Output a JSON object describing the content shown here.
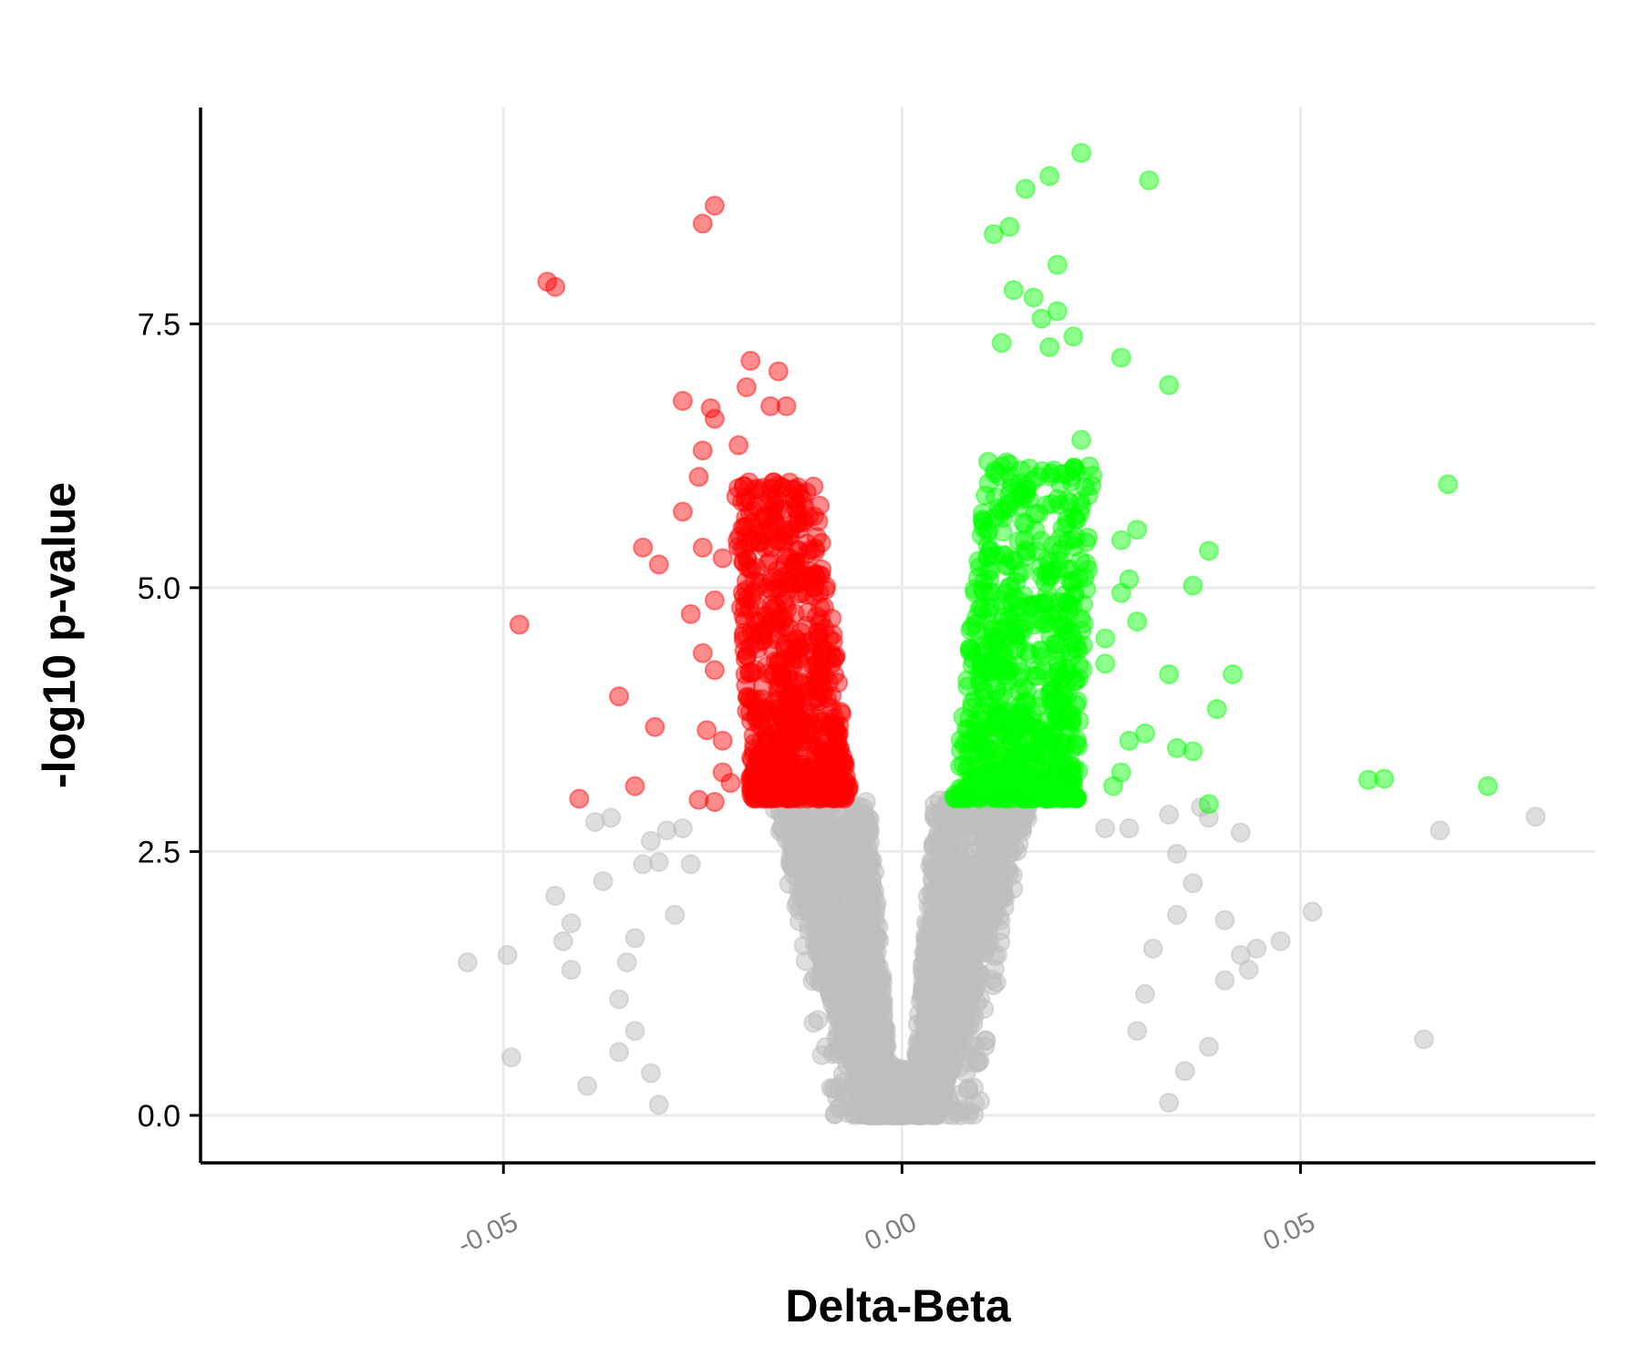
{
  "chart_data": {
    "type": "scatter",
    "title": "",
    "xlabel": "Delta-Beta",
    "ylabel": "-log10 p-value",
    "xlim": [
      -0.088,
      0.087
    ],
    "ylim": [
      -0.45,
      9.55
    ],
    "x_ticks": [
      -0.05,
      0.0,
      0.05
    ],
    "x_tick_labels": [
      "-0.05",
      "0.00",
      "0.05"
    ],
    "y_ticks": [
      0.0,
      2.5,
      5.0,
      7.5
    ],
    "y_tick_labels": [
      "0.0",
      "2.5",
      "5.0",
      "7.5"
    ],
    "grid": true,
    "legend": "none",
    "significance_threshold": 3.0,
    "colors": {
      "down": "#ff0000",
      "up": "#00ff00",
      "ns": "#bebebe",
      "grid": "#ebebeb",
      "axis": "#000000"
    },
    "series": [
      {
        "key": "down",
        "color": "#ff0000",
        "points": [
          [
            -0.0235,
            8.62
          ],
          [
            -0.025,
            8.45
          ],
          [
            -0.0445,
            7.9
          ],
          [
            -0.0435,
            7.85
          ],
          [
            -0.019,
            7.15
          ],
          [
            -0.0155,
            7.05
          ],
          [
            -0.0275,
            6.77
          ],
          [
            -0.024,
            6.7
          ],
          [
            -0.0235,
            6.6
          ],
          [
            -0.0195,
            6.9
          ],
          [
            -0.0165,
            6.72
          ],
          [
            -0.0145,
            6.72
          ],
          [
            -0.025,
            6.3
          ],
          [
            -0.0205,
            6.35
          ],
          [
            -0.0255,
            6.05
          ],
          [
            -0.0275,
            5.72
          ],
          [
            -0.0325,
            5.38
          ],
          [
            -0.0305,
            5.22
          ],
          [
            -0.025,
            5.38
          ],
          [
            -0.0225,
            5.28
          ],
          [
            -0.048,
            4.65
          ],
          [
            -0.0265,
            4.75
          ],
          [
            -0.0235,
            4.88
          ],
          [
            -0.025,
            4.38
          ],
          [
            -0.0235,
            4.22
          ],
          [
            -0.0355,
            3.97
          ],
          [
            -0.031,
            3.68
          ],
          [
            -0.0245,
            3.65
          ],
          [
            -0.0225,
            3.55
          ],
          [
            -0.0335,
            3.12
          ],
          [
            -0.0405,
            3.0
          ],
          [
            -0.0255,
            2.99
          ],
          [
            -0.0235,
            2.97
          ],
          [
            -0.0225,
            3.25
          ],
          [
            -0.0215,
            3.15
          ]
        ]
      },
      {
        "key": "up",
        "color": "#00ff00",
        "points": [
          [
            0.0225,
            9.12
          ],
          [
            0.031,
            8.86
          ],
          [
            0.0185,
            8.9
          ],
          [
            0.0155,
            8.78
          ],
          [
            0.0135,
            8.42
          ],
          [
            0.0115,
            8.35
          ],
          [
            0.0195,
            8.06
          ],
          [
            0.014,
            7.82
          ],
          [
            0.0165,
            7.75
          ],
          [
            0.0175,
            7.55
          ],
          [
            0.0195,
            7.62
          ],
          [
            0.0215,
            7.38
          ],
          [
            0.0185,
            7.28
          ],
          [
            0.0275,
            7.18
          ],
          [
            0.0125,
            7.32
          ],
          [
            0.0335,
            6.92
          ],
          [
            0.0225,
            6.4
          ],
          [
            0.0235,
            6.15
          ],
          [
            0.0685,
            5.98
          ],
          [
            0.0385,
            5.35
          ],
          [
            0.0295,
            5.55
          ],
          [
            0.0275,
            5.45
          ],
          [
            0.0365,
            5.02
          ],
          [
            0.0285,
            5.08
          ],
          [
            0.0275,
            4.95
          ],
          [
            0.0255,
            4.52
          ],
          [
            0.0295,
            4.68
          ],
          [
            0.0335,
            4.18
          ],
          [
            0.0415,
            4.18
          ],
          [
            0.0255,
            4.28
          ],
          [
            0.0395,
            3.85
          ],
          [
            0.0305,
            3.62
          ],
          [
            0.0345,
            3.48
          ],
          [
            0.0365,
            3.45
          ],
          [
            0.0285,
            3.55
          ],
          [
            0.0585,
            3.18
          ],
          [
            0.0605,
            3.19
          ],
          [
            0.0735,
            3.12
          ],
          [
            0.0385,
            2.95
          ],
          [
            0.0275,
            3.25
          ],
          [
            0.0265,
            3.12
          ]
        ]
      },
      {
        "key": "ns",
        "color": "#bebebe",
        "points": [
          [
            -0.0545,
            1.45
          ],
          [
            -0.0495,
            1.52
          ],
          [
            -0.049,
            0.55
          ],
          [
            -0.0435,
            2.08
          ],
          [
            -0.0415,
            1.82
          ],
          [
            -0.0425,
            1.65
          ],
          [
            -0.0415,
            1.38
          ],
          [
            -0.0395,
            0.28
          ],
          [
            -0.0385,
            2.78
          ],
          [
            -0.0365,
            2.82
          ],
          [
            -0.0375,
            2.22
          ],
          [
            -0.0355,
            0.6
          ],
          [
            -0.0335,
            1.68
          ],
          [
            -0.0325,
            2.38
          ],
          [
            -0.0315,
            2.6
          ],
          [
            -0.0305,
            2.4
          ],
          [
            -0.0295,
            2.7
          ],
          [
            -0.0285,
            1.9
          ],
          [
            -0.0305,
            0.1
          ],
          [
            -0.0275,
            2.72
          ],
          [
            -0.0265,
            2.38
          ],
          [
            -0.0355,
            1.1
          ],
          [
            -0.0335,
            0.8
          ],
          [
            -0.0315,
            0.4
          ],
          [
            -0.0345,
            1.45
          ],
          [
            0.0255,
            2.72
          ],
          [
            0.0285,
            2.72
          ],
          [
            0.0335,
            2.85
          ],
          [
            0.0345,
            2.48
          ],
          [
            0.0365,
            2.2
          ],
          [
            0.0375,
            2.92
          ],
          [
            0.0385,
            2.82
          ],
          [
            0.0425,
            2.68
          ],
          [
            0.0405,
            1.85
          ],
          [
            0.0425,
            1.52
          ],
          [
            0.0435,
            1.38
          ],
          [
            0.0445,
            1.58
          ],
          [
            0.0475,
            1.65
          ],
          [
            0.0515,
            1.93
          ],
          [
            0.0405,
            1.28
          ],
          [
            0.0385,
            0.65
          ],
          [
            0.0355,
            0.42
          ],
          [
            0.0335,
            0.12
          ],
          [
            0.0675,
            2.7
          ],
          [
            0.0795,
            2.83
          ],
          [
            0.0655,
            0.72
          ],
          [
            0.0315,
            1.58
          ],
          [
            0.0345,
            1.9
          ],
          [
            0.0295,
            0.8
          ],
          [
            0.0305,
            1.15
          ]
        ]
      }
    ],
    "ns_cloud": {
      "center_x": 0.0,
      "halfwidth_at_zero": 0.0045,
      "halfwidth_at_threshold": 0.0165,
      "halfwidth_low": 0.022,
      "count": 2600
    },
    "sig_cloud": {
      "down_x_min": -0.021,
      "down_x_max": -0.0065,
      "up_x_min": 0.0065,
      "up_x_max": 0.021,
      "count_each": 700
    }
  }
}
